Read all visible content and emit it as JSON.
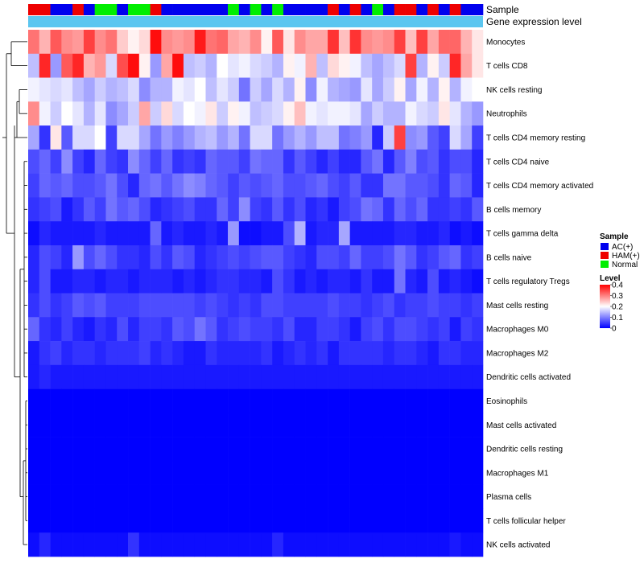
{
  "chart_data": {
    "type": "heatmap",
    "annotation_titles": [
      "Sample",
      "Gene expression level"
    ],
    "rows": [
      "Monocytes",
      "T cells CD8",
      "NK cells resting",
      "Neutrophils",
      "T cells CD4 memory resting",
      "T cells CD4 naive",
      "T cells CD4 memory activated",
      "B cells memory",
      "T cells gamma delta",
      "B cells naive",
      "T cells regulatory  Tregs",
      "Mast cells resting",
      "Macrophages M0",
      "Macrophages M2",
      "Dendritic cells activated",
      "Eosinophils",
      "Mast cells activated",
      "Dendritic cells resting",
      "Macrophages M1",
      "Plasma cells",
      "T cells follicular helper",
      "NK cells activated"
    ],
    "sample_groups": [
      "HAM(+)",
      "HAM(+)",
      "AC(+)",
      "AC(+)",
      "HAM(+)",
      "AC(+)",
      "Normal",
      "Normal",
      "AC(+)",
      "Normal",
      "Normal",
      "HAM(+)",
      "AC(+)",
      "AC(+)",
      "AC(+)",
      "AC(+)",
      "AC(+)",
      "AC(+)",
      "Normal",
      "AC(+)",
      "Normal",
      "AC(+)",
      "Normal",
      "AC(+)",
      "AC(+)",
      "AC(+)",
      "AC(+)",
      "HAM(+)",
      "AC(+)",
      "HAM(+)",
      "AC(+)",
      "Normal",
      "AC(+)",
      "HAM(+)",
      "HAM(+)",
      "AC(+)",
      "HAM(+)",
      "AC(+)",
      "HAM(+)",
      "AC(+)",
      "AC(+)"
    ],
    "sample_colors": {
      "AC(+)": "#0000ee",
      "HAM(+)": "#ee0000",
      "Normal": "#00ee00"
    },
    "expression_bar_color": "#5bc6f0",
    "legend": {
      "sample_title": "Sample",
      "sample_entries": [
        "AC(+)",
        "HAM(+)",
        "Normal"
      ],
      "level_title": "Level",
      "level_ticks": [
        0.4,
        0.3,
        0.2,
        0.1,
        0
      ],
      "level_range": [
        0,
        0.4
      ],
      "colorscale": [
        "#0000ff",
        "#ffffff",
        "#ff0000"
      ],
      "placement": "right"
    },
    "values": [
      [
        0.31,
        0.26,
        0.33,
        0.29,
        0.28,
        0.35,
        0.29,
        0.31,
        0.24,
        0.21,
        0.23,
        0.39,
        0.29,
        0.28,
        0.29,
        0.38,
        0.31,
        0.32,
        0.27,
        0.26,
        0.29,
        0.21,
        0.33,
        0.22,
        0.29,
        0.27,
        0.27,
        0.36,
        0.25,
        0.36,
        0.29,
        0.28,
        0.29,
        0.35,
        0.25,
        0.35,
        0.27,
        0.32,
        0.32,
        0.26,
        0.22
      ],
      [
        0.15,
        0.37,
        0.12,
        0.33,
        0.37,
        0.26,
        0.28,
        0.17,
        0.34,
        0.39,
        0.21,
        0.12,
        0.27,
        0.39,
        0.15,
        0.16,
        0.14,
        0.2,
        0.18,
        0.19,
        0.17,
        0.16,
        0.14,
        0.21,
        0.19,
        0.26,
        0.15,
        0.23,
        0.21,
        0.19,
        0.15,
        0.13,
        0.15,
        0.17,
        0.35,
        0.14,
        0.21,
        0.16,
        0.37,
        0.27,
        0.22
      ],
      [
        0.19,
        0.18,
        0.17,
        0.18,
        0.15,
        0.13,
        0.16,
        0.14,
        0.15,
        0.17,
        0.11,
        0.14,
        0.14,
        0.19,
        0.18,
        0.2,
        0.15,
        0.18,
        0.16,
        0.09,
        0.16,
        0.13,
        0.17,
        0.14,
        0.21,
        0.11,
        0.19,
        0.14,
        0.13,
        0.12,
        0.18,
        0.13,
        0.16,
        0.21,
        0.13,
        0.19,
        0.14,
        0.21,
        0.14,
        0.19,
        0.2
      ],
      [
        0.29,
        0.19,
        0.16,
        0.2,
        0.18,
        0.14,
        0.18,
        0.11,
        0.13,
        0.16,
        0.27,
        0.16,
        0.23,
        0.17,
        0.2,
        0.19,
        0.22,
        0.16,
        0.21,
        0.19,
        0.15,
        0.16,
        0.17,
        0.21,
        0.25,
        0.19,
        0.18,
        0.19,
        0.19,
        0.18,
        0.13,
        0.16,
        0.14,
        0.14,
        0.19,
        0.17,
        0.16,
        0.22,
        0.18,
        0.14,
        0.12
      ],
      [
        0.13,
        0.04,
        0.22,
        0.07,
        0.17,
        0.17,
        0.2,
        0.05,
        0.17,
        0.17,
        0.13,
        0.09,
        0.12,
        0.1,
        0.12,
        0.14,
        0.15,
        0.12,
        0.14,
        0.09,
        0.17,
        0.17,
        0.09,
        0.12,
        0.14,
        0.12,
        0.15,
        0.15,
        0.09,
        0.1,
        0.12,
        0.03,
        0.16,
        0.35,
        0.11,
        0.12,
        0.07,
        0.05,
        0.17,
        0.13,
        0.05
      ],
      [
        0.06,
        0.08,
        0.05,
        0.11,
        0.05,
        0.03,
        0.08,
        0.05,
        0.04,
        0.11,
        0.08,
        0.05,
        0.08,
        0.04,
        0.05,
        0.04,
        0.08,
        0.07,
        0.07,
        0.05,
        0.09,
        0.08,
        0.08,
        0.04,
        0.07,
        0.05,
        0.03,
        0.05,
        0.03,
        0.03,
        0.07,
        0.09,
        0.03,
        0.07,
        0.1,
        0.06,
        0.07,
        0.04,
        0.06,
        0.06,
        0.03
      ],
      [
        0.05,
        0.08,
        0.07,
        0.08,
        0.06,
        0.06,
        0.07,
        0.09,
        0.06,
        0.03,
        0.08,
        0.09,
        0.07,
        0.09,
        0.11,
        0.1,
        0.08,
        0.07,
        0.05,
        0.07,
        0.06,
        0.07,
        0.08,
        0.06,
        0.06,
        0.07,
        0.08,
        0.06,
        0.05,
        0.07,
        0.04,
        0.04,
        0.09,
        0.09,
        0.07,
        0.07,
        0.06,
        0.04,
        0.08,
        0.07,
        0.03
      ],
      [
        0.04,
        0.05,
        0.06,
        0.02,
        0.04,
        0.07,
        0.05,
        0.09,
        0.07,
        0.08,
        0.06,
        0.03,
        0.04,
        0.05,
        0.06,
        0.04,
        0.04,
        0.08,
        0.05,
        0.11,
        0.05,
        0.04,
        0.07,
        0.04,
        0.06,
        0.03,
        0.04,
        0.02,
        0.05,
        0.06,
        0.09,
        0.08,
        0.04,
        0.08,
        0.06,
        0.08,
        0.04,
        0.04,
        0.05,
        0.04,
        0.07
      ],
      [
        0.01,
        0.03,
        0.02,
        0.02,
        0.02,
        0.02,
        0.03,
        0.02,
        0.02,
        0.02,
        0.02,
        0.08,
        0.02,
        0.03,
        0.02,
        0.02,
        0.03,
        0.02,
        0.12,
        0.01,
        0.01,
        0.02,
        0.02,
        0.06,
        0.14,
        0.02,
        0.03,
        0.03,
        0.13,
        0.02,
        0.02,
        0.02,
        0.02,
        0.03,
        0.03,
        0.02,
        0.02,
        0.03,
        0.01,
        0.02,
        0.01
      ],
      [
        0.03,
        0.06,
        0.05,
        0.03,
        0.12,
        0.06,
        0.08,
        0.06,
        0.04,
        0.04,
        0.03,
        0.06,
        0.04,
        0.07,
        0.06,
        0.03,
        0.04,
        0.05,
        0.06,
        0.05,
        0.06,
        0.07,
        0.07,
        0.05,
        0.04,
        0.03,
        0.06,
        0.06,
        0.05,
        0.08,
        0.05,
        0.05,
        0.06,
        0.09,
        0.07,
        0.04,
        0.05,
        0.07,
        0.08,
        0.04,
        0.05
      ],
      [
        0.03,
        0.06,
        0.02,
        0.02,
        0.03,
        0.03,
        0.02,
        0.03,
        0.03,
        0.02,
        0.03,
        0.03,
        0.03,
        0.02,
        0.03,
        0.02,
        0.03,
        0.04,
        0.04,
        0.03,
        0.03,
        0.02,
        0.06,
        0.04,
        0.02,
        0.03,
        0.02,
        0.03,
        0.03,
        0.02,
        0.04,
        0.02,
        0.02,
        0.09,
        0.03,
        0.02,
        0.06,
        0.02,
        0.03,
        0.02,
        0.01
      ],
      [
        0.04,
        0.06,
        0.04,
        0.05,
        0.07,
        0.06,
        0.07,
        0.05,
        0.05,
        0.05,
        0.06,
        0.06,
        0.06,
        0.06,
        0.06,
        0.05,
        0.06,
        0.05,
        0.04,
        0.05,
        0.04,
        0.06,
        0.06,
        0.05,
        0.05,
        0.05,
        0.05,
        0.06,
        0.05,
        0.05,
        0.04,
        0.05,
        0.06,
        0.04,
        0.05,
        0.05,
        0.06,
        0.05,
        0.05,
        0.04,
        0.05
      ],
      [
        0.08,
        0.04,
        0.03,
        0.05,
        0.03,
        0.02,
        0.04,
        0.03,
        0.06,
        0.03,
        0.05,
        0.05,
        0.04,
        0.07,
        0.06,
        0.09,
        0.07,
        0.04,
        0.05,
        0.06,
        0.05,
        0.05,
        0.04,
        0.06,
        0.03,
        0.03,
        0.05,
        0.05,
        0.04,
        0.02,
        0.05,
        0.06,
        0.04,
        0.06,
        0.06,
        0.05,
        0.04,
        0.05,
        0.02,
        0.05,
        0.04
      ],
      [
        0.02,
        0.04,
        0.05,
        0.03,
        0.04,
        0.04,
        0.03,
        0.04,
        0.04,
        0.04,
        0.05,
        0.03,
        0.04,
        0.03,
        0.02,
        0.02,
        0.04,
        0.03,
        0.03,
        0.03,
        0.03,
        0.04,
        0.02,
        0.03,
        0.04,
        0.03,
        0.04,
        0.02,
        0.04,
        0.04,
        0.04,
        0.04,
        0.03,
        0.04,
        0.04,
        0.03,
        0.02,
        0.04,
        0.04,
        0.03,
        0.03
      ],
      [
        0.02,
        0.03,
        0.02,
        0.02,
        0.02,
        0.02,
        0.02,
        0.02,
        0.02,
        0.02,
        0.02,
        0.02,
        0.02,
        0.02,
        0.02,
        0.02,
        0.02,
        0.02,
        0.02,
        0.02,
        0.02,
        0.02,
        0.02,
        0.02,
        0.02,
        0.02,
        0.02,
        0.02,
        0.02,
        0.02,
        0.02,
        0.02,
        0.02,
        0.02,
        0.02,
        0.02,
        0.02,
        0.02,
        0.02,
        0.02,
        0.02
      ],
      [
        0,
        0,
        0,
        0,
        0,
        0,
        0,
        0,
        0,
        0,
        0,
        0,
        0,
        0,
        0,
        0,
        0,
        0,
        0,
        0,
        0,
        0,
        0,
        0,
        0,
        0,
        0,
        0,
        0,
        0,
        0,
        0,
        0,
        0,
        0,
        0,
        0,
        0,
        0,
        0,
        0
      ],
      [
        0,
        0,
        0,
        0,
        0,
        0,
        0,
        0,
        0,
        0,
        0,
        0,
        0,
        0,
        0,
        0,
        0,
        0,
        0,
        0,
        0,
        0,
        0,
        0,
        0,
        0,
        0,
        0,
        0,
        0,
        0,
        0,
        0,
        0,
        0,
        0,
        0,
        0,
        0,
        0,
        0
      ],
      [
        0,
        0,
        0,
        0,
        0,
        0,
        0,
        0,
        0,
        0,
        0,
        0,
        0,
        0,
        0,
        0,
        0,
        0,
        0,
        0,
        0,
        0,
        0,
        0,
        0,
        0,
        0,
        0,
        0,
        0,
        0,
        0,
        0,
        0,
        0,
        0,
        0,
        0,
        0,
        0,
        0
      ],
      [
        0,
        0,
        0,
        0,
        0,
        0,
        0,
        0,
        0,
        0,
        0,
        0,
        0,
        0,
        0,
        0,
        0,
        0,
        0,
        0,
        0,
        0,
        0,
        0,
        0,
        0,
        0,
        0,
        0,
        0,
        0,
        0,
        0,
        0,
        0,
        0,
        0,
        0,
        0,
        0,
        0
      ],
      [
        0,
        0,
        0,
        0,
        0,
        0,
        0,
        0,
        0,
        0,
        0,
        0,
        0,
        0,
        0,
        0,
        0,
        0,
        0,
        0,
        0,
        0,
        0,
        0,
        0,
        0,
        0,
        0,
        0,
        0,
        0,
        0,
        0,
        0,
        0,
        0,
        0,
        0,
        0,
        0,
        0
      ],
      [
        0,
        0,
        0,
        0,
        0,
        0,
        0,
        0,
        0,
        0,
        0,
        0,
        0,
        0,
        0,
        0,
        0,
        0,
        0,
        0,
        0,
        0,
        0,
        0,
        0,
        0,
        0,
        0,
        0,
        0,
        0,
        0,
        0,
        0,
        0,
        0,
        0,
        0,
        0,
        0,
        0
      ],
      [
        0.01,
        0.03,
        0.01,
        0.01,
        0.01,
        0.01,
        0.01,
        0.01,
        0.01,
        0.04,
        0.01,
        0.01,
        0.01,
        0.01,
        0.01,
        0.01,
        0.01,
        0.01,
        0.01,
        0.01,
        0.01,
        0.01,
        0.03,
        0.01,
        0.01,
        0.01,
        0.01,
        0.01,
        0.01,
        0.01,
        0.01,
        0.01,
        0.01,
        0.01,
        0.01,
        0.01,
        0.01,
        0.01,
        0.02,
        0.01,
        0.01
      ]
    ]
  }
}
